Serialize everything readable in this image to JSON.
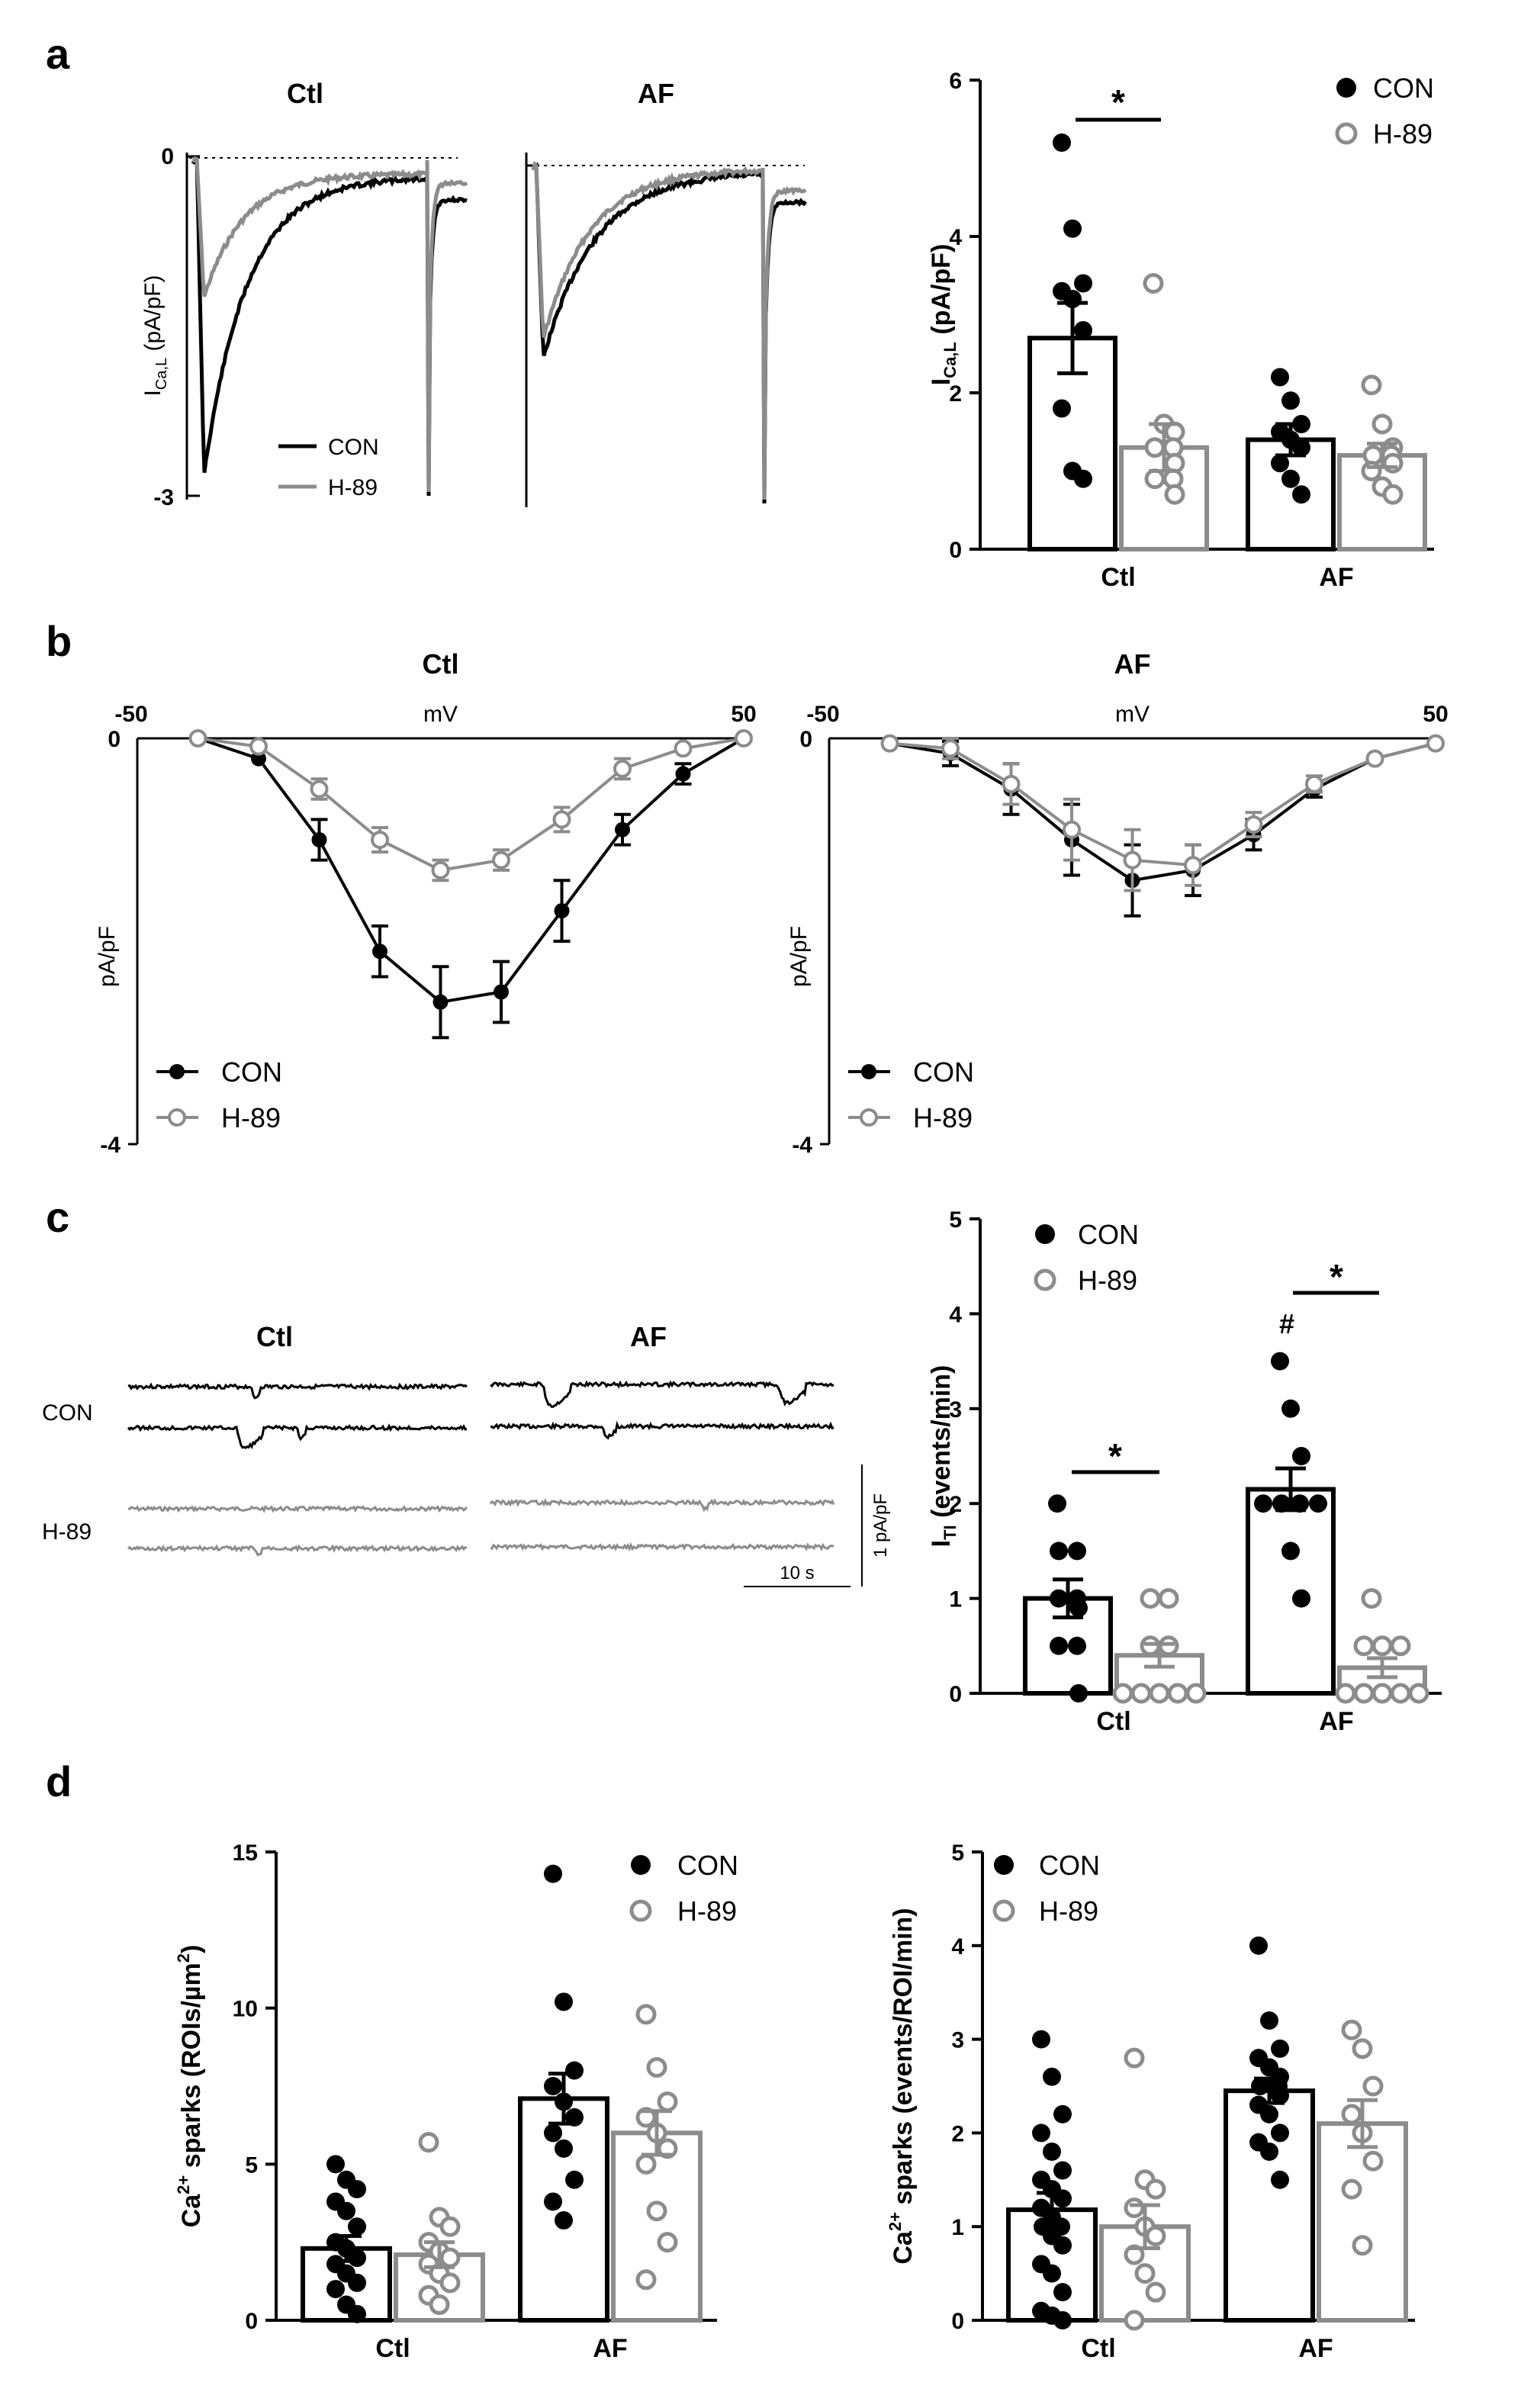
{
  "colors": {
    "con": "#000000",
    "h89": "#8c8c8c"
  },
  "legend": {
    "con": "CON",
    "h89": "H-89"
  },
  "panels": {
    "a": "a",
    "b": "b",
    "c": "c",
    "d": "d"
  },
  "panel_a": {
    "trace_titles": [
      "Ctl",
      "AF"
    ],
    "trace_ylabel_main": "I",
    "trace_ylabel_sub": "Ca,L",
    "trace_ylabel_unit": " (pA/pF)",
    "trace_ticks": [
      "0",
      "-3"
    ],
    "sig": "*"
  },
  "panel_b": {
    "titles": [
      "Ctl",
      "AF"
    ],
    "x_unit": "mV",
    "y_unit": "pA/pF"
  },
  "panel_c": {
    "trace_titles": [
      "Ctl",
      "AF"
    ],
    "row_labels": [
      "CON",
      "H-89"
    ],
    "scale_time": "10 s",
    "scale_amp": "1 pA/pF",
    "sig": "*",
    "hash": "#"
  },
  "chart_data": [
    {
      "id": "a-bar",
      "type": "bar",
      "categories": [
        "Ctl",
        "AF"
      ],
      "ylabel_main": "I",
      "ylabel_sub": "Ca,L",
      "ylabel_unit": " (pA/pF)",
      "ylim": [
        0,
        6
      ],
      "yticks": [
        0,
        2,
        4,
        6
      ],
      "series": [
        {
          "name": "CON",
          "means": [
            2.7,
            1.4
          ],
          "sems": [
            0.45,
            0.2
          ],
          "points": [
            [
              5.2,
              4.1,
              3.4,
              3.3,
              3.2,
              2.8,
              1.8,
              1.0,
              0.9
            ],
            [
              2.2,
              1.9,
              1.6,
              1.5,
              1.4,
              1.3,
              1.1,
              0.9,
              0.7
            ]
          ]
        },
        {
          "name": "H-89",
          "means": [
            1.3,
            1.2
          ],
          "sems": [
            0.3,
            0.15
          ],
          "points": [
            [
              3.4,
              1.6,
              1.5,
              1.3,
              1.3,
              1.1,
              0.9,
              0.9,
              0.7
            ],
            [
              2.1,
              1.6,
              1.3,
              1.2,
              1.2,
              1.1,
              1.0,
              0.8,
              0.7
            ]
          ]
        }
      ]
    },
    {
      "id": "b-ctl",
      "type": "line",
      "title": "Ctl",
      "xlim": [
        -50,
        50
      ],
      "ylim": [
        -4,
        0
      ],
      "xtick_labels": [
        "-50",
        "50"
      ],
      "ytick_labels": [
        "0",
        "-4"
      ],
      "x": [
        -40,
        -30,
        -20,
        -10,
        0,
        10,
        20,
        30,
        40,
        50
      ],
      "series": [
        {
          "name": "CON",
          "y": [
            0.0,
            -0.2,
            -1.0,
            -2.1,
            -2.6,
            -2.5,
            -1.7,
            -0.9,
            -0.35,
            0.0
          ],
          "err": [
            0.03,
            0.05,
            0.2,
            0.25,
            0.35,
            0.3,
            0.3,
            0.15,
            0.1,
            0.03
          ]
        },
        {
          "name": "H-89",
          "y": [
            0.0,
            -0.08,
            -0.5,
            -1.0,
            -1.3,
            -1.2,
            -0.8,
            -0.3,
            -0.1,
            0.0
          ],
          "err": [
            0.03,
            0.05,
            0.1,
            0.12,
            0.1,
            0.1,
            0.12,
            0.1,
            0.05,
            0.03
          ]
        }
      ]
    },
    {
      "id": "b-af",
      "type": "line",
      "title": "AF",
      "xlim": [
        -50,
        50
      ],
      "ylim": [
        -4,
        0
      ],
      "xtick_labels": [
        "-50",
        "50"
      ],
      "ytick_labels": [
        "0",
        "-4"
      ],
      "x": [
        -40,
        -30,
        -20,
        -10,
        0,
        10,
        20,
        30,
        40,
        50
      ],
      "series": [
        {
          "name": "CON",
          "y": [
            -0.05,
            -0.15,
            -0.5,
            -1.0,
            -1.4,
            -1.3,
            -0.95,
            -0.5,
            -0.2,
            -0.05
          ],
          "err": [
            0.05,
            0.12,
            0.25,
            0.35,
            0.35,
            0.25,
            0.15,
            0.08,
            0.05,
            0.03
          ]
        },
        {
          "name": "H-89",
          "y": [
            -0.05,
            -0.1,
            -0.45,
            -0.9,
            -1.2,
            -1.25,
            -0.85,
            -0.45,
            -0.2,
            -0.05
          ],
          "err": [
            0.05,
            0.1,
            0.2,
            0.3,
            0.3,
            0.2,
            0.12,
            0.08,
            0.05,
            0.03
          ]
        }
      ]
    },
    {
      "id": "c-bar",
      "type": "bar",
      "categories": [
        "Ctl",
        "AF"
      ],
      "ylabel_main": "I",
      "ylabel_sub": "TI",
      "ylabel_unit": " (events/min)",
      "ylim": [
        0,
        5
      ],
      "yticks": [
        0,
        1,
        2,
        3,
        4,
        5
      ],
      "series": [
        {
          "name": "CON",
          "means": [
            1.0,
            2.15
          ],
          "sems": [
            0.2,
            0.22
          ],
          "points": [
            [
              2.0,
              1.5,
              1.5,
              1.0,
              1.0,
              0.9,
              0.5,
              0.5,
              0.0
            ],
            [
              3.5,
              3.0,
              2.5,
              2.0,
              2.0,
              2.0,
              2.0,
              1.5,
              1.0
            ]
          ]
        },
        {
          "name": "H-89",
          "means": [
            0.4,
            0.27
          ],
          "sems": [
            0.12,
            0.1
          ],
          "points": [
            [
              1.0,
              1.0,
              0.5,
              0.5,
              0.0,
              0.0,
              0.0,
              0.0,
              0.0
            ],
            [
              1.0,
              0.5,
              0.5,
              0.5,
              0.0,
              0.0,
              0.0,
              0.0,
              0.0
            ]
          ]
        }
      ]
    },
    {
      "id": "d-density",
      "type": "bar",
      "categories": [
        "Ctl",
        "AF"
      ],
      "ylabel_main": "Ca",
      "ylabel_sup": "2+",
      "ylabel_unit": " sparks (ROIs/µm",
      "ylabel_unit_sup": "2",
      "ylabel_unit_end": ")",
      "ylim": [
        0,
        15
      ],
      "yticks": [
        0,
        5,
        10,
        15
      ],
      "series": [
        {
          "name": "CON",
          "means": [
            2.3,
            7.1
          ],
          "sems": [
            0.4,
            0.8
          ],
          "points": [
            [
              5.0,
              4.5,
              4.2,
              3.8,
              3.5,
              3.0,
              2.5,
              2.3,
              2.0,
              1.8,
              1.5,
              1.2,
              1.0,
              0.5,
              0.2
            ],
            [
              14.3,
              10.2,
              8.0,
              7.5,
              7.0,
              6.5,
              6.0,
              5.5,
              4.5,
              3.8,
              3.2
            ]
          ]
        },
        {
          "name": "H-89",
          "means": [
            2.1,
            6.0
          ],
          "sems": [
            0.4,
            0.7
          ],
          "points": [
            [
              5.7,
              3.3,
              3.0,
              2.5,
              2.2,
              2.0,
              1.8,
              1.5,
              1.2,
              0.8,
              0.5
            ],
            [
              9.8,
              8.1,
              7.0,
              6.5,
              6.0,
              5.5,
              5.0,
              3.5,
              2.5,
              1.3
            ]
          ]
        }
      ]
    },
    {
      "id": "d-frequency",
      "type": "bar",
      "categories": [
        "Ctl",
        "AF"
      ],
      "ylabel_main": "Ca",
      "ylabel_sup": "2+",
      "ylabel_unit": " sparks (events/ROI/min)",
      "ylim": [
        0,
        5
      ],
      "yticks": [
        0,
        1,
        2,
        3,
        4,
        5
      ],
      "series": [
        {
          "name": "CON",
          "means": [
            1.18,
            2.45
          ],
          "sems": [
            0.18,
            0.13
          ],
          "points": [
            [
              3.0,
              2.6,
              2.2,
              2.0,
              1.8,
              1.6,
              1.5,
              1.4,
              1.3,
              1.2,
              1.1,
              1.0,
              1.0,
              0.9,
              0.8,
              0.6,
              0.5,
              0.3,
              0.1,
              0.05,
              0.0
            ],
            [
              4.0,
              3.2,
              2.9,
              2.8,
              2.7,
              2.6,
              2.5,
              2.5,
              2.4,
              2.3,
              2.2,
              2.0,
              1.9,
              1.8,
              1.5
            ]
          ]
        },
        {
          "name": "H-89",
          "means": [
            1.0,
            2.1
          ],
          "sems": [
            0.23,
            0.25
          ],
          "points": [
            [
              2.8,
              1.5,
              1.4,
              1.2,
              1.0,
              0.9,
              0.7,
              0.5,
              0.3,
              0.0
            ],
            [
              3.1,
              2.9,
              2.5,
              2.2,
              2.0,
              1.7,
              1.4,
              0.8
            ]
          ]
        }
      ]
    }
  ]
}
